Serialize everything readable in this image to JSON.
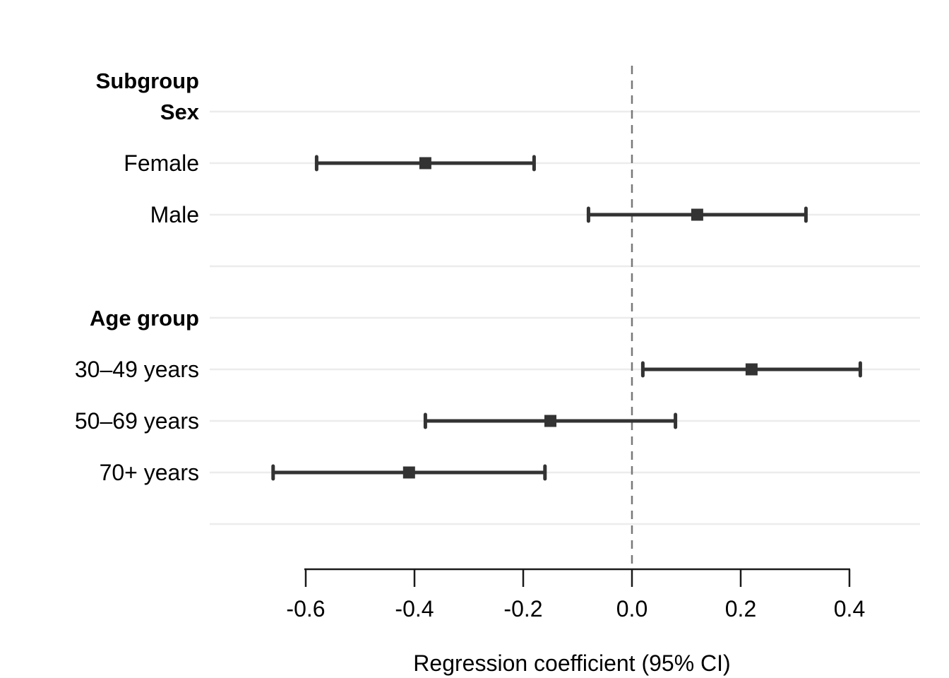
{
  "chart_data": {
    "type": "scatter",
    "variant": "forest-plot",
    "title": "",
    "xlabel": "Regression coefficient (95% CI)",
    "ylabel": "",
    "xlim": [
      -0.775,
      0.53
    ],
    "x_ticks": [
      -0.6,
      -0.4,
      -0.2,
      0.0,
      0.2,
      0.4
    ],
    "x_tick_labels": [
      "-0.6",
      "-0.4",
      "-0.2",
      "0.0",
      "0.2",
      "0.4"
    ],
    "grid": "horizontal-row-gridlines-on",
    "legend": "none",
    "reference_line": {
      "x": 0.0,
      "style": "dashed"
    },
    "rows": [
      {
        "label": "Subgroup",
        "style": "top-header"
      },
      {
        "label": "Sex",
        "style": "header"
      },
      {
        "label": "Female",
        "style": "data",
        "estimate": -0.38,
        "ci_low": -0.58,
        "ci_high": -0.18
      },
      {
        "label": "Male",
        "style": "data",
        "estimate": 0.12,
        "ci_low": -0.08,
        "ci_high": 0.32
      },
      {
        "label": "",
        "style": "spacer"
      },
      {
        "label": "Age group",
        "style": "header"
      },
      {
        "label": "30–49 years",
        "style": "data",
        "estimate": 0.22,
        "ci_low": 0.02,
        "ci_high": 0.42
      },
      {
        "label": "50–69 years",
        "style": "data",
        "estimate": -0.15,
        "ci_low": -0.38,
        "ci_high": 0.08
      },
      {
        "label": "70+ years",
        "style": "data",
        "estimate": -0.41,
        "ci_low": -0.66,
        "ci_high": -0.16
      },
      {
        "label": "",
        "style": "spacer"
      }
    ],
    "colors": {
      "marker": "#333333",
      "ci_line": "#333333",
      "row_gridline": "#ececec",
      "reference_line": "#787878",
      "axis": "#1a1a1a",
      "text": "#000000"
    }
  }
}
